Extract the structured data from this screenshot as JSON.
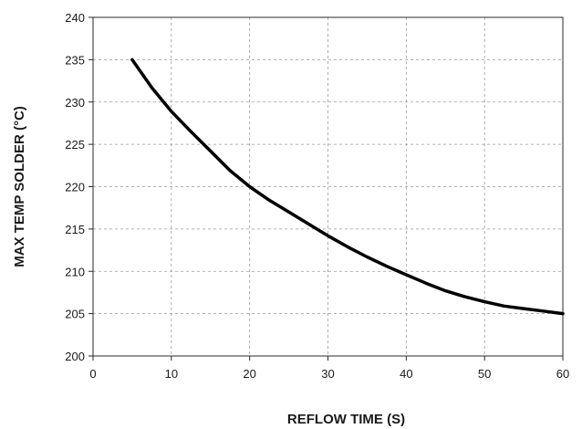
{
  "chart_data": {
    "type": "line",
    "title": "",
    "xlabel": "REFLOW TIME (S)",
    "ylabel": "MAX TEMP SOLDER (°C)",
    "xlim": [
      0,
      60
    ],
    "ylim": [
      200,
      240
    ],
    "x_ticks": [
      0,
      10,
      20,
      30,
      40,
      50,
      60
    ],
    "y_ticks": [
      200,
      205,
      210,
      215,
      220,
      225,
      230,
      235,
      240
    ],
    "grid": true,
    "series": [
      {
        "color": "#000000",
        "x": [
          5,
          7.5,
          10,
          12.5,
          15,
          17.5,
          20,
          22.5,
          25,
          27.5,
          30,
          32.5,
          35,
          37.5,
          40,
          42.5,
          45,
          47.5,
          50,
          52.5,
          55,
          57.5,
          60
        ],
        "y": [
          235,
          231.7,
          228.9,
          226.5,
          224.2,
          221.9,
          220,
          218.4,
          217.0,
          215.6,
          214.2,
          212.9,
          211.7,
          210.6,
          209.6,
          208.6,
          207.7,
          207.0,
          206.4,
          205.9,
          205.6,
          205.3,
          205
        ]
      }
    ]
  }
}
